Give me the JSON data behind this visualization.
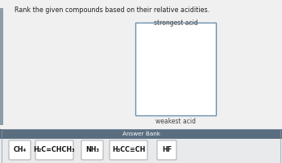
{
  "title": "Rank the given compounds based on their relative acidities.",
  "strongest_label": "strongest acid",
  "weakest_label": "weakest acid",
  "answer_bank_label": "Answer Bank",
  "compounds": [
    "CH₄",
    "H₂C=CHCH₃",
    "NH₃",
    "H₃CC≡CH",
    "HF"
  ],
  "bg_color": "#f0f0f0",
  "answer_bank_bg": "#5a6e80",
  "answer_bank_text_color": "#ffffff",
  "box_border_color": "#6a8faf",
  "compound_box_color": "#ffffff",
  "compound_box_border": "#aaaaaa",
  "sidebar_color": "#8a9eaa",
  "title_fontsize": 5.8,
  "label_fontsize": 5.5,
  "compound_fontsize": 5.8,
  "answer_bank_fontsize": 5.2
}
